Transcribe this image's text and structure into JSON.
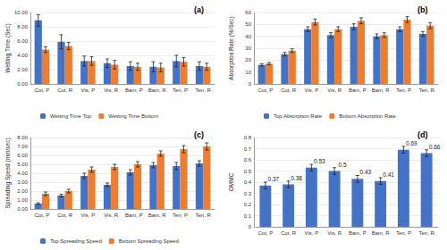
{
  "chart_data": [
    {
      "type": "bar",
      "title": "(a)",
      "y_label": "Wetting Time (Sec)",
      "categories": [
        "Cot, P",
        "Cot, R",
        "Vis, P",
        "Vis, R",
        "Bam, P",
        "Bam, R",
        "Ten, P",
        "Ten, R"
      ],
      "series": [
        {
          "name": "Wetting Time Top",
          "color": "#4472c4",
          "values": [
            8.9,
            5.9,
            3.2,
            2.9,
            2.5,
            2.4,
            3.2,
            2.5
          ],
          "errors": [
            0.8,
            1.0,
            0.7,
            0.6,
            0.6,
            0.7,
            0.8,
            0.6
          ]
        },
        {
          "name": "Wetting Time Bottom",
          "color": "#ed7d31",
          "values": [
            4.8,
            5.3,
            3.2,
            2.7,
            2.4,
            2.3,
            3.1,
            2.4
          ],
          "errors": [
            0.4,
            0.5,
            0.6,
            0.6,
            0.5,
            0.6,
            0.6,
            0.5
          ]
        }
      ],
      "ylim": [
        0,
        10
      ],
      "yticks": [
        {
          "value": 0,
          "label": "0.00"
        },
        {
          "value": 2,
          "label": "2.00"
        },
        {
          "value": 4,
          "label": "4.00"
        },
        {
          "value": 6,
          "label": "6.00"
        },
        {
          "value": 8,
          "label": "8.00"
        },
        {
          "value": 10,
          "label": "10.00"
        }
      ],
      "grid": true,
      "legend": "bottom"
    },
    {
      "type": "bar",
      "title": "(b)",
      "y_label": "Absorption Rate (%/Sec)",
      "categories": [
        "Cot, P",
        "Cot, R",
        "Vis, P",
        "Vis, R",
        "Bam, P",
        "Bam, R",
        "Ten, P",
        "Ten, R"
      ],
      "series": [
        {
          "name": "Top Absorption Rate",
          "color": "#4472c4",
          "values": [
            16,
            25,
            46,
            41,
            48,
            40,
            46,
            42
          ],
          "errors": [
            1,
            1.5,
            2,
            2,
            2.5,
            2,
            2,
            2
          ]
        },
        {
          "name": "Bottom Absorption Rate",
          "color": "#ed7d31",
          "values": [
            17,
            28,
            52,
            46,
            53,
            41,
            54,
            49
          ],
          "errors": [
            1,
            1.5,
            2.5,
            2,
            2.5,
            2,
            2.5,
            2.5
          ]
        }
      ],
      "ylim": [
        0,
        60
      ],
      "yticks": [
        0,
        10,
        20,
        30,
        40,
        50,
        60
      ],
      "grid": true,
      "legend": "bottom"
    },
    {
      "type": "bar",
      "title": "(c)",
      "y_label": "Spreading Speed (mm/sec)",
      "categories": [
        "Cot, P",
        "Cot, R",
        "Vis, P",
        "Vis, R",
        "Bam, P",
        "Bam, R",
        "Ten, P",
        "Ten, R"
      ],
      "series": [
        {
          "name": "Top Spreading Speed",
          "color": "#4472c4",
          "values": [
            0.6,
            1.5,
            3.7,
            2.7,
            4.1,
            4.9,
            4.8,
            5.1
          ],
          "errors": [
            0.1,
            0.15,
            0.3,
            0.2,
            0.3,
            0.3,
            0.4,
            0.3
          ]
        },
        {
          "name": "Bottom Spreading Speed",
          "color": "#ed7d31",
          "values": [
            1.7,
            2.0,
            4.4,
            4.7,
            5.0,
            6.2,
            6.7,
            7.0
          ],
          "errors": [
            0.2,
            0.2,
            0.3,
            0.3,
            0.3,
            0.3,
            0.4,
            0.4
          ]
        }
      ],
      "ylim": [
        0,
        8
      ],
      "yticks": [
        {
          "value": 0,
          "label": "0.00"
        },
        {
          "value": 1,
          "label": "1.00"
        },
        {
          "value": 2,
          "label": "2.00"
        },
        {
          "value": 3,
          "label": "3.00"
        },
        {
          "value": 4,
          "label": "4.00"
        },
        {
          "value": 5,
          "label": "5.00"
        },
        {
          "value": 6,
          "label": "6.00"
        },
        {
          "value": 7,
          "label": "7.00"
        },
        {
          "value": 8,
          "label": "8.00"
        }
      ],
      "grid": true,
      "legend": "bottom"
    },
    {
      "type": "bar",
      "title": "(d)",
      "y_label": "OMMC",
      "categories": [
        "Cot, P",
        "Cot, R",
        "Vis, P",
        "Vis, R",
        "Bam, P",
        "Bam, R",
        "Ten, P",
        "Ten, R"
      ],
      "color": "#4472c4",
      "values": [
        0.37,
        0.38,
        0.53,
        0.5,
        0.43,
        0.41,
        0.69,
        0.66
      ],
      "errors": [
        0.03,
        0.03,
        0.03,
        0.03,
        0.03,
        0.03,
        0.03,
        0.03
      ],
      "ylim": [
        0,
        0.8
      ],
      "yticks": [
        0,
        0.1,
        0.2,
        0.3,
        0.4,
        0.5,
        0.6,
        0.7,
        0.8
      ],
      "grid": true,
      "data_labels": true
    }
  ]
}
